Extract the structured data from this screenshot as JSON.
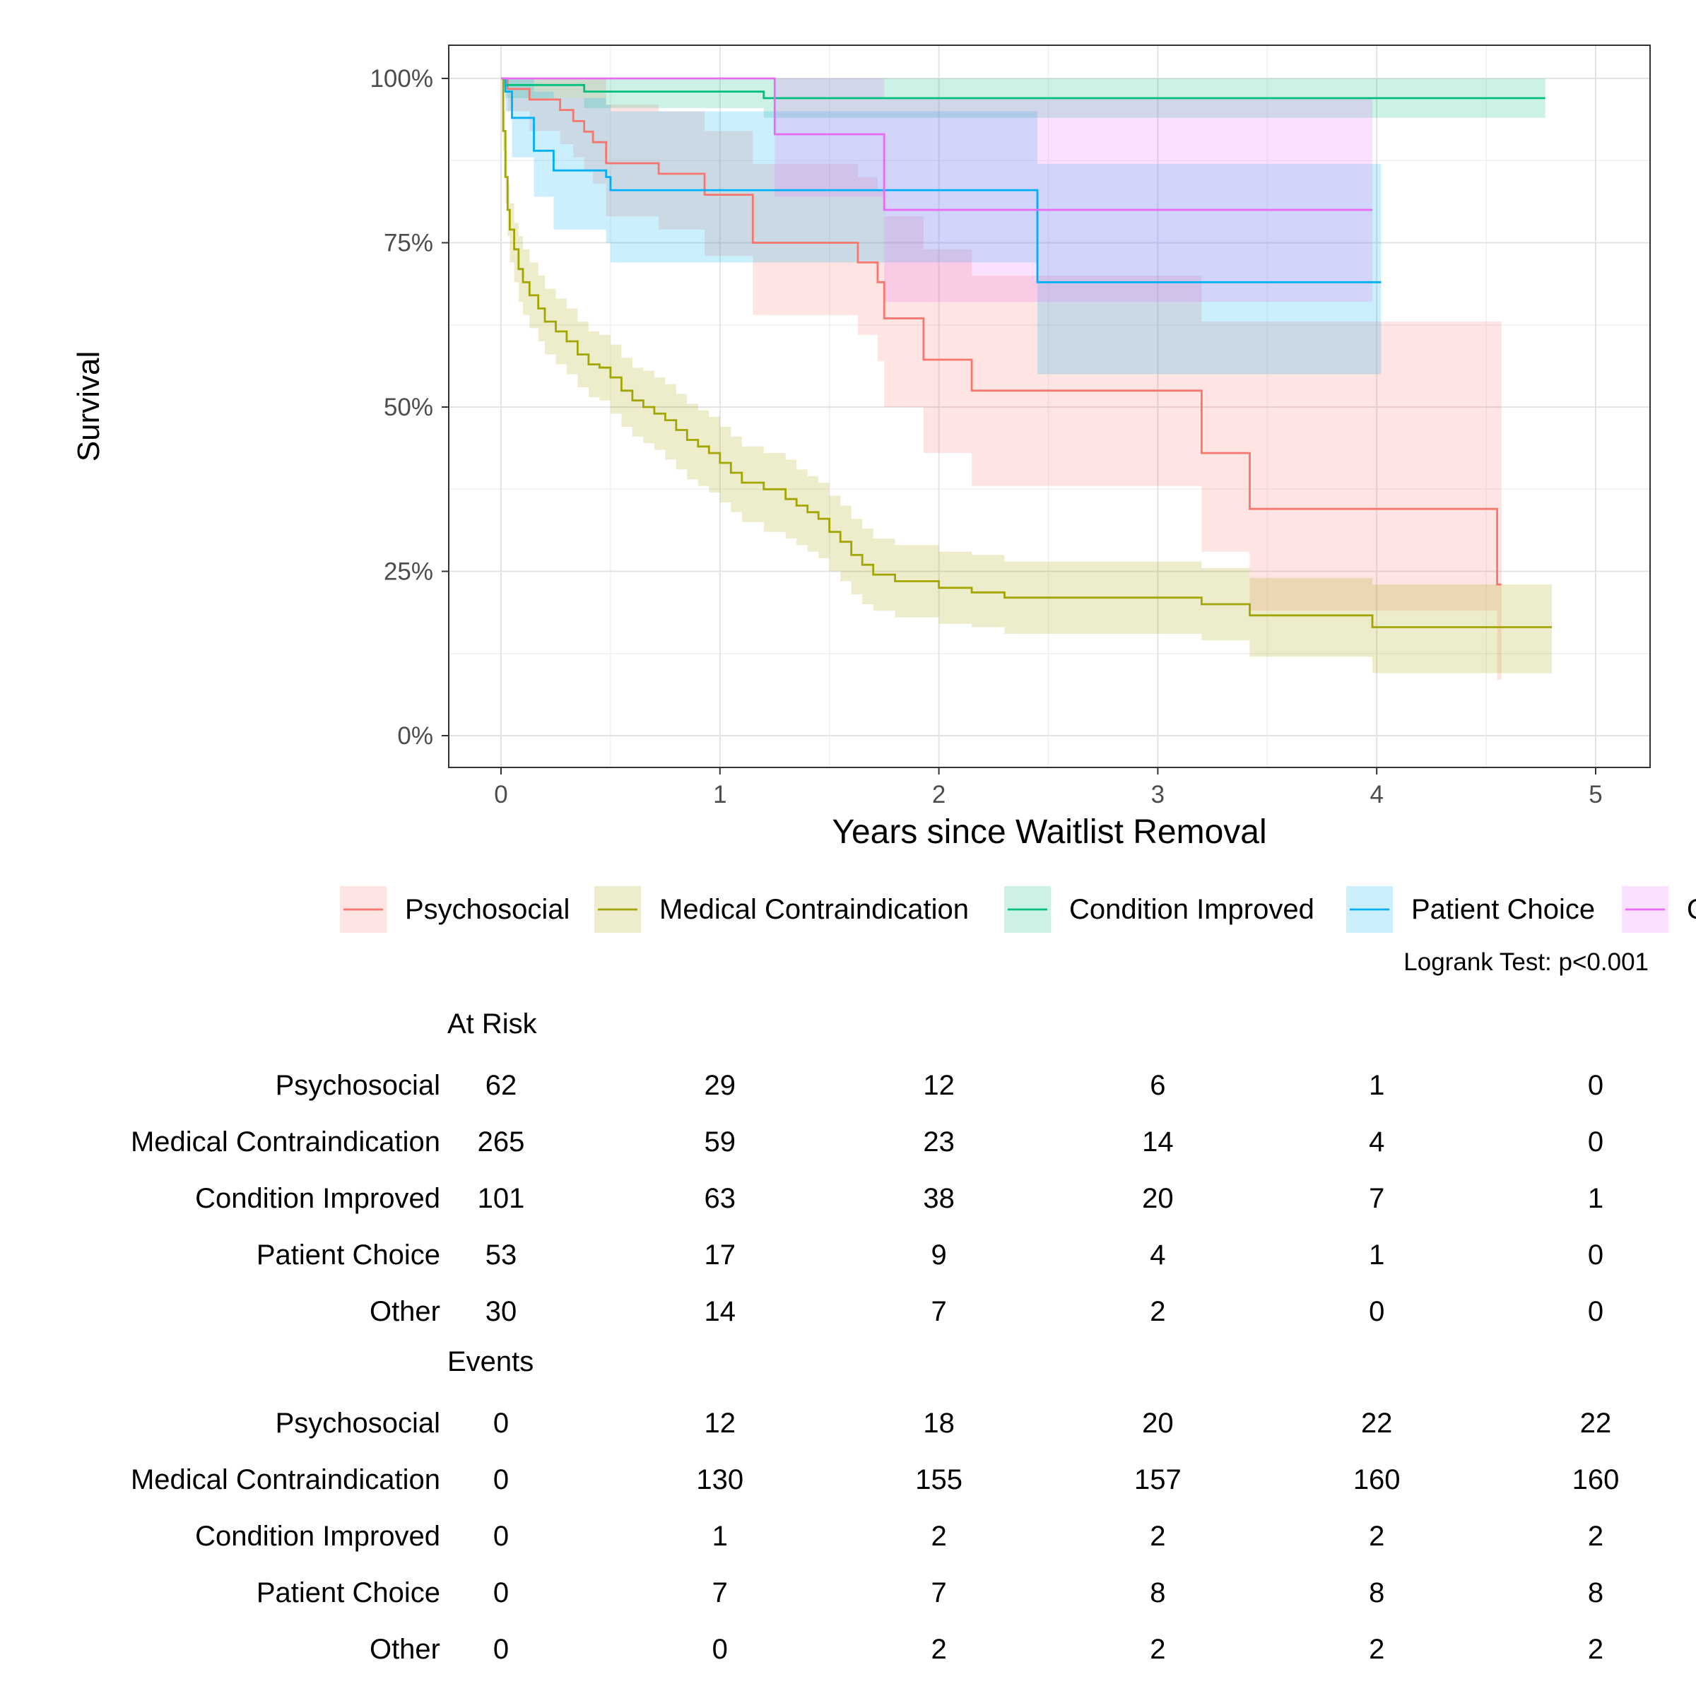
{
  "chart_data": {
    "type": "line",
    "subtype": "kaplan-meier",
    "ylabel": "Survival",
    "xlabel": "Years since Waitlist Removal",
    "xlim": [
      0,
      5
    ],
    "ylim": [
      0,
      1
    ],
    "x_ticks": [
      "0",
      "1",
      "2",
      "3",
      "4",
      "5"
    ],
    "y_ticks": [
      "0%",
      "25%",
      "50%",
      "75%",
      "100%"
    ],
    "grid": true,
    "legend_position": "bottom",
    "annotation": "Logrank Test: p<0.001",
    "colors": {
      "Psychosocial": "#F8766D",
      "Medical Contraindication": "#A3A500",
      "Condition Improved": "#00BF7D",
      "Patient Choice": "#00B0F6",
      "Other": "#E76BF3"
    },
    "legend_labels": [
      "Psychosocial",
      "Medical Contraindication",
      "Condition Improved",
      "Patient Choice",
      "O"
    ],
    "series": [
      {
        "name": "Psychosocial",
        "x": [
          0,
          0.03,
          0.13,
          0.27,
          0.33,
          0.38,
          0.42,
          0.48,
          0.72,
          0.93,
          1.15,
          1.63,
          1.72,
          1.75,
          1.93,
          2.15,
          3.2,
          3.42,
          4.55
        ],
        "y": [
          1.0,
          0.984,
          0.968,
          0.952,
          0.935,
          0.919,
          0.903,
          0.871,
          0.855,
          0.823,
          0.75,
          0.72,
          0.69,
          0.635,
          0.572,
          0.525,
          0.43,
          0.345,
          0.23
        ],
        "lower": [
          1.0,
          0.95,
          0.92,
          0.9,
          0.88,
          0.86,
          0.84,
          0.79,
          0.77,
          0.73,
          0.64,
          0.61,
          0.57,
          0.5,
          0.43,
          0.38,
          0.28,
          0.19,
          0.085
        ],
        "upper": [
          1.0,
          1.0,
          1.0,
          1.0,
          1.0,
          1.0,
          1.0,
          0.96,
          0.95,
          0.92,
          0.87,
          0.85,
          0.83,
          0.79,
          0.74,
          0.7,
          0.63,
          0.63,
          0.63
        ],
        "x_end": 4.57
      },
      {
        "name": "Medical Contraindication",
        "x": [
          0,
          0.01,
          0.02,
          0.03,
          0.04,
          0.06,
          0.08,
          0.1,
          0.13,
          0.17,
          0.2,
          0.25,
          0.3,
          0.35,
          0.4,
          0.45,
          0.5,
          0.55,
          0.6,
          0.65,
          0.7,
          0.75,
          0.8,
          0.85,
          0.9,
          0.95,
          1.0,
          1.05,
          1.1,
          1.2,
          1.3,
          1.35,
          1.4,
          1.45,
          1.5,
          1.55,
          1.6,
          1.65,
          1.7,
          1.8,
          2.0,
          2.15,
          2.3,
          3.2,
          3.42,
          3.98
        ],
        "y": [
          1.0,
          0.92,
          0.85,
          0.8,
          0.77,
          0.74,
          0.71,
          0.69,
          0.67,
          0.65,
          0.63,
          0.615,
          0.6,
          0.58,
          0.565,
          0.56,
          0.545,
          0.525,
          0.51,
          0.5,
          0.49,
          0.48,
          0.465,
          0.45,
          0.44,
          0.43,
          0.415,
          0.4,
          0.385,
          0.375,
          0.36,
          0.35,
          0.34,
          0.33,
          0.31,
          0.295,
          0.275,
          0.26,
          0.245,
          0.235,
          0.225,
          0.218,
          0.21,
          0.2,
          0.183,
          0.165
        ],
        "lower": [
          1.0,
          0.89,
          0.81,
          0.76,
          0.72,
          0.69,
          0.66,
          0.64,
          0.62,
          0.6,
          0.58,
          0.565,
          0.55,
          0.53,
          0.515,
          0.51,
          0.49,
          0.47,
          0.455,
          0.445,
          0.435,
          0.42,
          0.405,
          0.39,
          0.38,
          0.37,
          0.355,
          0.34,
          0.325,
          0.31,
          0.3,
          0.29,
          0.28,
          0.27,
          0.25,
          0.235,
          0.215,
          0.2,
          0.19,
          0.18,
          0.17,
          0.165,
          0.155,
          0.145,
          0.12,
          0.095
        ],
        "upper": [
          1.0,
          0.95,
          0.89,
          0.84,
          0.81,
          0.78,
          0.76,
          0.74,
          0.72,
          0.7,
          0.68,
          0.665,
          0.65,
          0.63,
          0.615,
          0.61,
          0.595,
          0.575,
          0.56,
          0.555,
          0.545,
          0.535,
          0.52,
          0.505,
          0.495,
          0.485,
          0.47,
          0.455,
          0.44,
          0.43,
          0.42,
          0.405,
          0.395,
          0.385,
          0.365,
          0.35,
          0.33,
          0.315,
          0.3,
          0.29,
          0.28,
          0.275,
          0.265,
          0.255,
          0.24,
          0.23
        ],
        "x_end": 4.8
      },
      {
        "name": "Condition Improved",
        "x": [
          0,
          0.02,
          0.38,
          1.2
        ],
        "y": [
          1.0,
          0.99,
          0.98,
          0.97
        ],
        "lower": [
          1.0,
          0.97,
          0.955,
          0.94
        ],
        "upper": [
          1.0,
          1.0,
          1.0,
          1.0
        ],
        "x_end": 4.77
      },
      {
        "name": "Patient Choice",
        "x": [
          0,
          0.02,
          0.05,
          0.15,
          0.24,
          0.48,
          0.5,
          2.45
        ],
        "y": [
          1.0,
          0.98,
          0.94,
          0.89,
          0.86,
          0.85,
          0.83,
          0.69
        ],
        "lower": [
          1.0,
          0.95,
          0.88,
          0.82,
          0.77,
          0.75,
          0.72,
          0.55
        ],
        "upper": [
          1.0,
          1.0,
          1.0,
          0.98,
          0.97,
          0.96,
          0.95,
          0.87
        ],
        "x_end": 4.02
      },
      {
        "name": "Other",
        "x": [
          0,
          1.25,
          1.75
        ],
        "y": [
          1.0,
          0.915,
          0.8
        ],
        "lower": [
          1.0,
          0.82,
          0.66
        ],
        "upper": [
          1.0,
          1.0,
          0.97
        ],
        "x_end": 3.98
      }
    ]
  },
  "risk_table": {
    "title": "At Risk",
    "rows": [
      {
        "label": "Psychosocial",
        "values": [
          "62",
          "29",
          "12",
          "6",
          "1",
          "0"
        ]
      },
      {
        "label": "Medical Contraindication",
        "values": [
          "265",
          "59",
          "23",
          "14",
          "4",
          "0"
        ]
      },
      {
        "label": "Condition Improved",
        "values": [
          "101",
          "63",
          "38",
          "20",
          "7",
          "1"
        ]
      },
      {
        "label": "Patient Choice",
        "values": [
          "53",
          "17",
          "9",
          "4",
          "1",
          "0"
        ]
      },
      {
        "label": "Other",
        "values": [
          "30",
          "14",
          "7",
          "2",
          "0",
          "0"
        ]
      }
    ]
  },
  "events_table": {
    "title": "Events",
    "rows": [
      {
        "label": "Psychosocial",
        "values": [
          "0",
          "12",
          "18",
          "20",
          "22",
          "22"
        ]
      },
      {
        "label": "Medical Contraindication",
        "values": [
          "0",
          "130",
          "155",
          "157",
          "160",
          "160"
        ]
      },
      {
        "label": "Condition Improved",
        "values": [
          "0",
          "1",
          "2",
          "2",
          "2",
          "2"
        ]
      },
      {
        "label": "Patient Choice",
        "values": [
          "0",
          "7",
          "7",
          "8",
          "8",
          "8"
        ]
      },
      {
        "label": "Other",
        "values": [
          "0",
          "0",
          "2",
          "2",
          "2",
          "2"
        ]
      }
    ]
  }
}
